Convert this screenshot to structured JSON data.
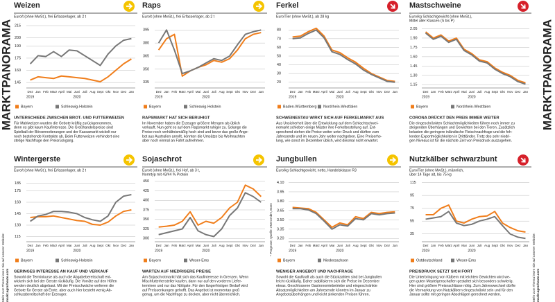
{
  "page_label": "MARKTPANORAMA",
  "website_note": "Mehr zum Thema lesen Sie auf unserer Website:",
  "website": "markt.agrarheute.com",
  "source": "* Prognose; Quelle: AMI GmbH, Bonn",
  "chart_data": [
    {
      "type": "line",
      "title": "Weizen",
      "trend": "right",
      "subtitle": [
        "Euro/t (ohne MwSt.), frei Erfasserlager, ab 2 t"
      ],
      "categories": [
        "Dez",
        "Jan",
        "Feb",
        "März",
        "April",
        "Mai",
        "Juni",
        "Juli",
        "Aug",
        "Sept",
        "Okt",
        "Nov",
        "Dez",
        "Jan"
      ],
      "years": [
        "2019",
        "2020"
      ],
      "ylim": [
        140,
        215
      ],
      "yticks": [
        145,
        160,
        175,
        190,
        200,
        215
      ],
      "grid": true,
      "series": [
        {
          "name": "Bayern",
          "color": "#f07d1a",
          "values": [
            148,
            152,
            151,
            150,
            153,
            152,
            151,
            150,
            148,
            146,
            152,
            160,
            168,
            174
          ]
        },
        {
          "name": "Schleswig-Holstein",
          "color": "#777777",
          "values": [
            168,
            178,
            177,
            183,
            177,
            185,
            184,
            178,
            172,
            166,
            180,
            190,
            197,
            199
          ]
        }
      ],
      "heading": "UNTERSCHIEDE ZWISCHEN BROT- UND FUTTERWEIZEN",
      "text": [
        "Für Mahlweizen wurden die Gebote kräftig zurückgenommen,",
        "denn es gibt kaum Kaufinteresse. Die Großhandelspreise sind",
        "Spielball der Börsennotierungen und der Kassamarkt wickelt nur",
        "noch bestehende Kontrakte ab. Beim Futterweizen verhindert eine",
        "stetige Nachfrage den Preisrückgang."
      ]
    },
    {
      "type": "line",
      "title": "Raps",
      "trend": "right",
      "subtitle": [
        "Euro/t (ohne MwSt.), frei Erfasserlager, ab 2 t"
      ],
      "categories": [
        "Dez",
        "Jan",
        "Feb",
        "März",
        "April",
        "Mai",
        "Juni",
        "Juli",
        "Aug",
        "Sept",
        "Okt",
        "Nov",
        "Dez",
        "Jan"
      ],
      "years": [
        "2019",
        "2020"
      ],
      "ylim": [
        330,
        400
      ],
      "yticks": [
        335,
        350,
        365,
        380,
        395
      ],
      "grid": true,
      "series": [
        {
          "name": "Bayern",
          "color": "#f07d1a",
          "values": [
            372,
            385,
            390,
            342,
            348,
            352,
            355,
            360,
            358,
            362,
            372,
            385,
            390,
            392
          ]
        },
        {
          "name": "Schleswig-Holstein",
          "color": "#777777",
          "values": [
            380,
            395,
            372,
            345,
            348,
            352,
            357,
            362,
            360,
            365,
            378,
            390,
            393,
            395
          ]
        }
      ],
      "heading": "RAPSMARKT HAT SICH BERUHIGT",
      "text": [
        "Im November haben die Erzeuger größere Mengen als üblich",
        "verkauft. Nun geht es auf dem Rapsmarkt ruhiger zu. Solange die",
        "Preise noch verhältnismäßig hoch sind und bevor das große Ange-",
        "bot aus Australien anrollt, könnten die Umsätze bis Weihnachten",
        "aber noch einmal an Fahrt aufnehmen."
      ]
    },
    {
      "type": "line",
      "title": "Ferkel",
      "trend": "down",
      "subtitle": [
        "Euro/Tier (ohne MwSt.), ab 28 kg"
      ],
      "categories": [
        "Dez",
        "Jan",
        "Feb",
        "März",
        "April",
        "Mai",
        "Juni",
        "Juli",
        "Aug",
        "Sept",
        "Okt",
        "Nov",
        "Dez",
        "Jan"
      ],
      "years": [
        "2019",
        "2020"
      ],
      "ylim": [
        15,
        85
      ],
      "yticks": [
        20,
        30,
        40,
        50,
        60,
        70,
        80
      ],
      "grid": true,
      "series": [
        {
          "name": "Baden-Württemberg",
          "color": "#f07d1a",
          "values": [
            72,
            73,
            78,
            82,
            73,
            57,
            54,
            48,
            43,
            36,
            30,
            26,
            22,
            21
          ]
        },
        {
          "name": "Nordrhein-Westfalen",
          "color": "#777777",
          "values": [
            70,
            71,
            76,
            80,
            71,
            55,
            52,
            46,
            41,
            34,
            29,
            25,
            21,
            20
          ]
        }
      ],
      "heading": "SCHWEINESTAU WIRKT SICH AUF FERKELMARKT AUS",
      "text": [
        "Aus Unsicherheit über die Entwicklung auf dem Schlachtschwei-",
        "nemarkt schieben einige Mäster ihre Ferkelbestellung auf. Ent-",
        "sprechend stehen die Preise weiter unter Druck und dürften zum",
        "Jahresende und im neuen Jahr weiter nachgeben. Eine Preiserho-",
        "lung, wie sonst im Dezember üblich, wird diesmal nicht erwartet."
      ]
    },
    {
      "type": "line",
      "title": "Mastschweine",
      "trend": "down",
      "subtitle": [
        "Euro/kg Schlachtgewicht (ohne MwSt.),",
        "Mittel aller Klassen (S bis P)"
      ],
      "categories": [
        "Dez",
        "Jan",
        "Feb",
        "März",
        "April",
        "Mai",
        "Juni",
        "Juli",
        "Aug",
        "Sept",
        "Okt",
        "Nov",
        "Dez",
        "Jan"
      ],
      "years": [
        "2019",
        "2020"
      ],
      "ylim": [
        1.12,
        2.1
      ],
      "yticks": [
        1.15,
        {
          "value": 1.3,
          "label": "1.30"
        },
        1.45,
        {
          "value": 1.6,
          "label": "1.60"
        },
        1.75,
        {
          "value": 1.9,
          "label": "1.90"
        },
        2.05
      ],
      "grid": true,
      "series": [
        {
          "name": "Bayern",
          "color": "#f07d1a",
          "values": [
            2.0,
            1.9,
            1.95,
            1.85,
            1.9,
            1.72,
            1.65,
            1.55,
            1.52,
            1.42,
            1.35,
            1.3,
            1.22,
            1.18
          ]
        },
        {
          "name": "Nordrhein-Westfalen",
          "color": "#777777",
          "values": [
            1.98,
            1.88,
            1.93,
            1.83,
            1.88,
            1.7,
            1.63,
            1.53,
            1.5,
            1.4,
            1.33,
            1.28,
            1.2,
            1.16
          ]
        }
      ],
      "heading": "CORONA DRÜCKT DEN PREIS IMMER WEITER",
      "text": [
        "Die eingeschränkten Schlachtmöglichkeiten führen noch immer zu",
        "steigenden Überhängen und Gewichten bei den Tieren. Zusätzlich",
        "belasten die geringere inländische Fleischnachfrage und die feh-",
        "lenden Exportmöglichkeiten in Drittländer. Trotz des sehr niedri-",
        "gen Niveaus ist für die nächste Zeit von Preisdruck auszugehen."
      ]
    },
    {
      "type": "line",
      "title": "Wintergerste",
      "trend": "right",
      "subtitle": [
        "Euro/t (ohne MwSt.), frei Erfasserlager, ab 2 t"
      ],
      "categories": [
        "Dez",
        "Jan",
        "Feb",
        "März",
        "April",
        "Mai",
        "Juni",
        "Juli",
        "Aug",
        "Sept",
        "Okt",
        "Nov",
        "Dez",
        "Jan"
      ],
      "years": [
        "2019",
        "2020"
      ],
      "ylim": [
        110,
        190
      ],
      "yticks": [
        115,
        130,
        145,
        160,
        175,
        185
      ],
      "grid": true,
      "series": [
        {
          "name": "Bayern",
          "color": "#f07d1a",
          "values": [
            140,
            141,
            141,
            142,
            140,
            138,
            136,
            135,
            131,
            130,
            134,
            142,
            148,
            150
          ]
        },
        {
          "name": "Schleswig-Holstein",
          "color": "#777777",
          "values": [
            135,
            142,
            144,
            148,
            148,
            147,
            145,
            140,
            137,
            135,
            142,
            160,
            168,
            170
          ]
        }
      ],
      "heading": "GERINGES INTERESSE AN KAUF UND VERKAUF",
      "text": [
        "Sowohl die Terminkurse als auch die Abgabebereitschaft ent-",
        "wickeln sich bei der Gerste rückläufig. Die Vorräte auf den Höfen",
        "werden deutlich abgebaut. Mit der Preisschwäche verlieren die",
        "Gebote für Gerste ab Ernte, aber auch hier besteht wenig Ab-",
        "schlussbereitschaft der Erzeuger."
      ]
    },
    {
      "type": "line",
      "title": "Sojaschrot",
      "trend": "right",
      "subtitle": [
        "Euro/t (ohne MwSt.), frei Hof, ab 3 t,",
        "Normtyp mit 43/44 % Protein"
      ],
      "categories": [
        "Dez",
        "Jan",
        "Feb",
        "März",
        "April",
        "Mai",
        "Juni",
        "Juli",
        "Aug",
        "Sept",
        "Okt",
        "Nov",
        "Dez",
        "Jan"
      ],
      "years": [
        "2019",
        "2020"
      ],
      "ylim": [
        295,
        455
      ],
      "yticks": [
        300,
        325,
        350,
        375,
        400,
        425,
        450
      ],
      "grid": true,
      "series": [
        {
          "name": "Bayern",
          "color": "#f07d1a",
          "values": [
            330,
            332,
            335,
            345,
            370,
            335,
            345,
            340,
            355,
            380,
            395,
            440,
            430,
            410
          ]
        },
        {
          "name": "Weser-Ems",
          "color": "#777777",
          "values": [
            310,
            315,
            320,
            325,
            355,
            320,
            310,
            305,
            325,
            360,
            380,
            420,
            410,
            395
          ]
        }
      ],
      "heading": "WARTEN AUF NIEDRIGERE PREISE",
      "text": [
        "Am Sojaschrotmarkt hält sich das Kaufinteresse in Grenzen. Wenn",
        "Mischfutterhersteller kaufen, dann nur auf den vorderen Liefer-",
        "terminen und nur das Nötigste. Für den längerfristigen Bedarf wird",
        "auf Preissenkungen gehofft. Das Angebot ist momentan groß",
        "genug, um die Nachfrage zu decken, aber nicht überreichlich."
      ]
    },
    {
      "type": "line",
      "title": "Jungbullen",
      "trend": "right",
      "subtitle": [
        "Euro/kg Schlachtgewicht, netto, Handelsklasse R3"
      ],
      "categories": [
        "Dez",
        "Jan",
        "Feb",
        "März",
        "April",
        "Mai",
        "Juni",
        "Juli",
        "Aug",
        "Sept",
        "Okt",
        "Nov",
        "Dez",
        "Jan"
      ],
      "years": [
        "2019",
        "2020"
      ],
      "ylim": [
        3.17,
        4.15
      ],
      "yticks": [
        {
          "value": 3.2,
          "label": "3.20"
        },
        3.35,
        {
          "value": 3.5,
          "label": "3.50"
        },
        3.65,
        {
          "value": 3.8,
          "label": "3.80"
        },
        3.95,
        {
          "value": 4.1,
          "label": "4.10"
        }
      ],
      "grid": true,
      "series": [
        {
          "name": "Bayern",
          "color": "#f07d1a",
          "values": [
            3.7,
            3.69,
            3.68,
            3.62,
            3.5,
            3.38,
            3.45,
            3.42,
            3.55,
            3.52,
            3.62,
            3.6,
            3.62,
            3.63
          ]
        },
        {
          "name": "Niedersachsen",
          "color": "#777777",
          "values": [
            3.68,
            3.68,
            3.66,
            3.6,
            3.48,
            3.35,
            3.42,
            3.4,
            3.52,
            3.5,
            3.6,
            3.58,
            3.6,
            3.61
          ]
        }
      ],
      "heading": "WENIGER ANGEBOT UND NACHFRAGE",
      "text": [
        "Sowohl die Kaufkraft als auch die Stückzahlen sind bei Jungbullen",
        "leicht rückläufig. Daher stabilisieren sich die Preise im Dezember",
        "etwas. Geschlossene Gastronomiebetriebe und eingeschränkte",
        "Absatzmöglichkeiten am Jahresende könnten im Januar zu",
        "Angebotsüberhängen und leicht sinkenden Preisen führen."
      ]
    },
    {
      "type": "line",
      "title": "Nutzkälber schwarzbunt",
      "trend": "down",
      "subtitle": [
        "Euro/Tier (ohne MwSt.), männlich,",
        "über 14 Tage alt, bis 75 kg"
      ],
      "categories": [
        "Dez",
        "Jan",
        "Feb",
        "März",
        "April",
        "Mai",
        "Juni",
        "Juli",
        "Aug",
        "Sept",
        "Okt",
        "Nov",
        "Dez",
        "Jan"
      ],
      "years": [
        "2019",
        "2020"
      ],
      "ylim": [
        25,
        120
      ],
      "yticks": [
        35,
        55,
        75,
        95,
        115
      ],
      "grid": true,
      "series": [
        {
          "name": "Ostdeutschland",
          "color": "#f07d1a",
          "values": [
            65,
            65,
            75,
            80,
            55,
            52,
            58,
            62,
            63,
            70,
            52,
            45,
            40,
            38
          ]
        },
        {
          "name": "Weser-Ems",
          "color": "#777777",
          "values": [
            58,
            60,
            62,
            70,
            52,
            48,
            50,
            55,
            58,
            62,
            48,
            35,
            30,
            28
          ]
        }
      ],
      "heading": "PREISDRUCK SETZT SICH FORT",
      "text": [
        "Die Unterbringung von Kälbern mit leichten Gewichten wird we-",
        "gen guten Masteigenschaften gestaltet sich besonders schwierig.",
        "Hier sind größere Preisnachlässe nötig. Zum Jahreswechsel dürfte",
        "die Vermarktung von Nutzkälbern eingeschränkt sein und für den",
        "Januar sollte mit geringen Abschlägen gerechnet werden."
      ]
    }
  ]
}
